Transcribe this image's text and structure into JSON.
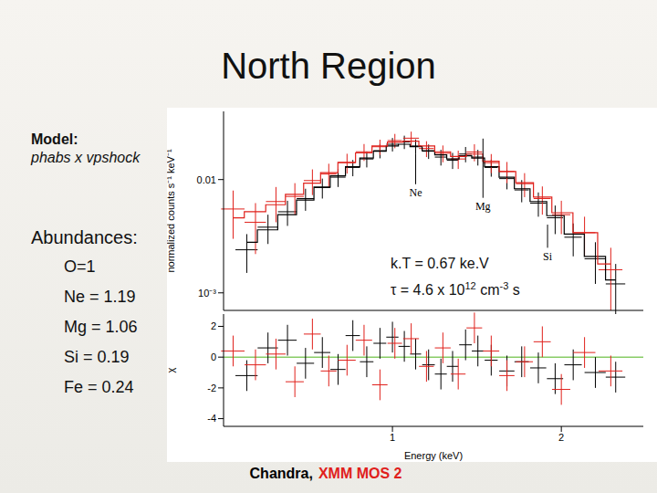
{
  "title": "North Region",
  "model": {
    "label": "Model:",
    "text": "phabs x vpshock"
  },
  "abundances": {
    "label": "Abundances:",
    "items": [
      "O=1",
      "Ne = 1.19",
      "Mg = 1.06",
      "Si = 0.19",
      "Fe = 0.24"
    ]
  },
  "fit": [
    {
      "parts": [
        {
          "text": "k.T = 0.67 ke.V"
        }
      ]
    },
    {
      "parts": [
        {
          "text": "τ = 4.6 x 10"
        },
        {
          "sup": "12"
        },
        {
          "text": " cm"
        },
        {
          "sup": "-3"
        },
        {
          "text": " s"
        }
      ]
    }
  ],
  "caption": [
    {
      "text": "Chandra,",
      "color": "#000000"
    },
    {
      "text": "XMM MOS 2",
      "color": "#e0201b"
    }
  ],
  "chart_data": [
    {
      "type": "scatter",
      "y_label": "normalized counts s⁻¹ keV⁻¹",
      "log": true,
      "tick_labels": "y",
      "xlim": [
        0.5,
        2.8
      ],
      "xticks": [
        1,
        2
      ],
      "ylim": [
        0.0007,
        0.04
      ],
      "yticks": [
        0.01,
        {
          "value": 0.001,
          "label": "10⁻³"
        }
      ],
      "annotations": [
        {
          "text": "Ne",
          "x": 1.1,
          "y_top": 0.017,
          "y_bottom": 0.0091
        },
        {
          "text": "Mg",
          "x": 1.45,
          "y_top": 0.023,
          "y_bottom": 0.0069
        },
        {
          "text": "Si",
          "x": 1.89,
          "y_top": 0.004,
          "y_bottom": 0.0025
        }
      ],
      "series": [
        {
          "name": "Chandra",
          "color": "#000000",
          "marker": "cross",
          "x": [
            0.55,
            0.6,
            0.65,
            0.7,
            0.75,
            0.8,
            0.85,
            0.9,
            0.95,
            1.0,
            1.05,
            1.1,
            1.16,
            1.22,
            1.28,
            1.35,
            1.42,
            1.5,
            1.6,
            1.7,
            1.82,
            1.95,
            2.1,
            2.3,
            2.5
          ],
          "x_errors": [
            0.025,
            0.025,
            0.025,
            0.025,
            0.025,
            0.025,
            0.025,
            0.025,
            0.025,
            0.025,
            0.025,
            0.025,
            0.03,
            0.03,
            0.03,
            0.035,
            0.035,
            0.04,
            0.05,
            0.05,
            0.06,
            0.065,
            0.075,
            0.1,
            0.1
          ],
          "values": [
            0.0024,
            0.0038,
            0.0052,
            0.0068,
            0.0085,
            0.0105,
            0.0128,
            0.0152,
            0.018,
            0.0205,
            0.0215,
            0.0198,
            0.0178,
            0.0158,
            0.0148,
            0.0168,
            0.0158,
            0.0128,
            0.0102,
            0.0081,
            0.0062,
            0.0046,
            0.0031,
            0.002,
            0.0012
          ],
          "errors": [
            0.0009,
            0.0011,
            0.0013,
            0.0015,
            0.0017,
            0.0019,
            0.0021,
            0.0024,
            0.0026,
            0.0028,
            0.0029,
            0.0028,
            0.0026,
            0.0025,
            0.0024,
            0.0026,
            0.0025,
            0.0022,
            0.002,
            0.0018,
            0.0015,
            0.0013,
            0.001,
            0.0008,
            0.0006
          ],
          "model": [
            0.0028,
            0.0036,
            0.0049,
            0.0066,
            0.0086,
            0.0108,
            0.013,
            0.0155,
            0.0178,
            0.0198,
            0.0205,
            0.0195,
            0.018,
            0.0165,
            0.0152,
            0.0162,
            0.0155,
            0.013,
            0.0105,
            0.0083,
            0.0064,
            0.0048,
            0.0033,
            0.0021,
            0.0013
          ]
        },
        {
          "name": "XMM MOS 2",
          "color": "#e0201b",
          "marker": "cross",
          "x": [
            0.52,
            0.57,
            0.62,
            0.67,
            0.72,
            0.77,
            0.83,
            0.89,
            0.95,
            1.01,
            1.08,
            1.15,
            1.23,
            1.31,
            1.4,
            1.5,
            1.6,
            1.72,
            1.85,
            2.0,
            2.2,
            2.45
          ],
          "x_errors": [
            0.025,
            0.025,
            0.025,
            0.025,
            0.025,
            0.025,
            0.03,
            0.03,
            0.03,
            0.03,
            0.035,
            0.035,
            0.04,
            0.04,
            0.045,
            0.05,
            0.05,
            0.06,
            0.065,
            0.075,
            0.1,
            0.12
          ],
          "values": [
            0.0055,
            0.0042,
            0.0064,
            0.0071,
            0.0098,
            0.0112,
            0.0141,
            0.0176,
            0.0195,
            0.0221,
            0.0232,
            0.0188,
            0.0171,
            0.0152,
            0.0175,
            0.0141,
            0.0118,
            0.0092,
            0.0068,
            0.0049,
            0.0034,
            0.0016
          ],
          "errors": [
            0.0025,
            0.002,
            0.0022,
            0.0022,
            0.0025,
            0.0026,
            0.0028,
            0.003,
            0.003,
            0.0032,
            0.0033,
            0.003,
            0.0029,
            0.0028,
            0.003,
            0.0027,
            0.0025,
            0.0022,
            0.0019,
            0.0016,
            0.0013,
            0.0009
          ],
          "model": [
            0.0046,
            0.0052,
            0.006,
            0.0074,
            0.0093,
            0.0115,
            0.0142,
            0.0172,
            0.0198,
            0.0214,
            0.0218,
            0.0198,
            0.0176,
            0.016,
            0.0168,
            0.0145,
            0.0118,
            0.0094,
            0.007,
            0.0051,
            0.0034,
            0.0018
          ]
        }
      ]
    },
    {
      "type": "scatter",
      "x_label": "Energy (keV)",
      "y_label": "χ",
      "log": "x",
      "xlim": [
        0.5,
        2.8
      ],
      "xticks": [
        1,
        2
      ],
      "ylim": [
        -4.5,
        2.8
      ],
      "yticks": [
        2,
        0,
        -2,
        -4
      ],
      "lines": [
        {
          "y": 0,
          "color": "#88cc66"
        }
      ],
      "series": [
        {
          "name": "Chandra",
          "color": "#000000",
          "marker": "cross",
          "x": [
            0.55,
            0.6,
            0.65,
            0.7,
            0.75,
            0.8,
            0.85,
            0.9,
            0.95,
            1.0,
            1.05,
            1.1,
            1.16,
            1.22,
            1.28,
            1.35,
            1.42,
            1.5,
            1.6,
            1.7,
            1.82,
            1.95,
            2.1,
            2.3,
            2.5
          ],
          "x_errors": [
            0.025,
            0.025,
            0.025,
            0.025,
            0.025,
            0.025,
            0.025,
            0.025,
            0.025,
            0.025,
            0.025,
            0.025,
            0.03,
            0.03,
            0.03,
            0.035,
            0.035,
            0.04,
            0.05,
            0.05,
            0.06,
            0.065,
            0.075,
            0.1,
            0.1
          ],
          "values": [
            -1.2,
            0.6,
            1.1,
            -0.4,
            0.3,
            -0.8,
            1.4,
            -0.3,
            0.9,
            1.3,
            0.7,
            0.2,
            -0.5,
            -1.1,
            -0.6,
            0.8,
            0.4,
            -0.2,
            -0.9,
            -0.3,
            -0.7,
            -1.4,
            -0.5,
            -1.0,
            -1.3
          ],
          "errors": [
            1,
            1,
            1,
            1,
            1,
            1,
            1,
            1,
            1,
            1,
            1,
            1,
            1,
            1,
            1,
            1,
            1,
            1,
            1,
            1,
            1,
            1,
            1,
            1,
            1
          ]
        },
        {
          "name": "XMM MOS 2",
          "color": "#e0201b",
          "marker": "cross",
          "x": [
            0.52,
            0.57,
            0.62,
            0.67,
            0.72,
            0.77,
            0.83,
            0.89,
            0.95,
            1.01,
            1.08,
            1.15,
            1.23,
            1.31,
            1.4,
            1.5,
            1.6,
            1.72,
            1.85,
            2.0,
            2.2,
            2.45
          ],
          "x_errors": [
            0.025,
            0.025,
            0.025,
            0.025,
            0.025,
            0.025,
            0.03,
            0.03,
            0.03,
            0.03,
            0.035,
            0.035,
            0.04,
            0.04,
            0.045,
            0.05,
            0.05,
            0.06,
            0.065,
            0.075,
            0.1,
            0.12
          ],
          "values": [
            0.4,
            -0.5,
            0.2,
            -1.6,
            1.5,
            -0.9,
            -0.2,
            1.1,
            -1.8,
            0.9,
            1.2,
            -0.6,
            0.6,
            -1.1,
            1.9,
            0.4,
            -1.2,
            -0.3,
            1.0,
            -2.1,
            0.3,
            -0.9
          ],
          "errors": [
            1,
            1,
            1,
            1,
            1,
            1,
            1,
            1,
            1,
            1,
            1,
            1,
            1,
            1,
            1,
            1,
            1,
            1,
            1,
            1,
            1,
            1
          ]
        }
      ]
    }
  ]
}
